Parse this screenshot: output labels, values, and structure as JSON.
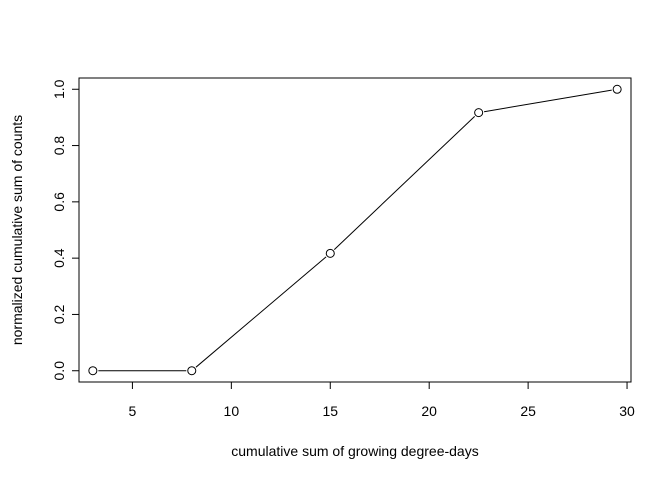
{
  "chart_data": {
    "type": "line",
    "title": "",
    "xlabel": "cumulative sum of growing degree-days",
    "ylabel": "normalized cumulative sum of counts",
    "xlim": [
      2.3,
      30.2
    ],
    "ylim": [
      -0.04,
      1.04
    ],
    "x_ticks": [
      5,
      10,
      15,
      20,
      25,
      30
    ],
    "x_tick_labels": [
      "5",
      "10",
      "15",
      "20",
      "25",
      "30"
    ],
    "y_ticks": [
      0.0,
      0.2,
      0.4,
      0.6,
      0.8,
      1.0
    ],
    "y_tick_labels": [
      "0.0",
      "0.2",
      "0.4",
      "0.6",
      "0.8",
      "1.0"
    ],
    "grid": false,
    "legend": "none",
    "marker": "open-circle",
    "series": [
      {
        "x": [
          3.0,
          8.0,
          15.0,
          22.5,
          29.5
        ],
        "y": [
          0.0,
          0.0,
          0.417,
          0.917,
          1.0
        ]
      }
    ],
    "colors": {
      "line": "#000000",
      "axes": "#000000",
      "background": "#ffffff"
    }
  }
}
